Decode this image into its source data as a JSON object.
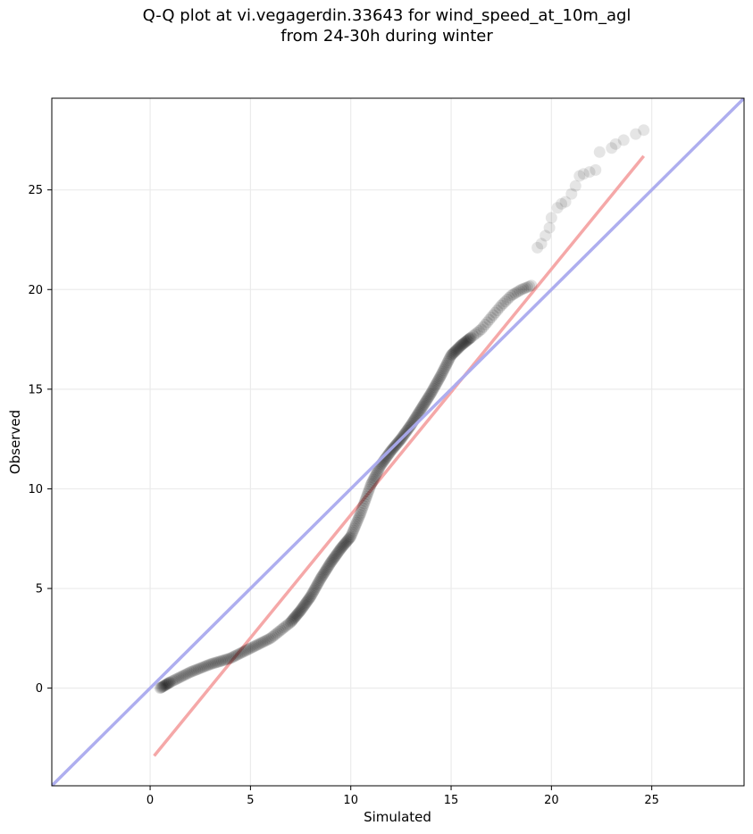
{
  "title": {
    "line1": "Q-Q plot at vi.vegagerdin.33643 for wind_speed_at_10m_agl",
    "line2": "from 24-30h during winter"
  },
  "chart_data": {
    "type": "scatter",
    "title": "Q-Q plot at vi.vegagerdin.33643 for wind_speed_at_10m_agl from 24-30h during winter",
    "xlabel": "Simulated",
    "ylabel": "Observed",
    "xlim": [
      -4.9,
      29.6
    ],
    "ylim": [
      -4.9,
      29.6
    ],
    "xticks": [
      0,
      5,
      10,
      15,
      20,
      25
    ],
    "yticks": [
      0,
      5,
      10,
      15,
      20,
      25
    ],
    "grid": true,
    "point_color": "#000000",
    "identity_line": {
      "from": [
        -4.9,
        -4.9
      ],
      "to": [
        29.6,
        29.6
      ],
      "color": "#aaaaee"
    },
    "fit_line": {
      "from": [
        0.2,
        -3.4
      ],
      "to": [
        24.6,
        26.7
      ],
      "color": "#f5a8a8"
    },
    "quantile_knots": {
      "x": [
        0.5,
        1.0,
        2.0,
        3.0,
        4.0,
        5.0,
        6.0,
        7.0,
        7.5,
        8.0,
        8.5,
        9.0,
        9.5,
        10.0,
        10.5,
        11.0,
        11.5,
        12.0,
        12.5,
        13.0,
        13.5,
        14.0,
        14.5,
        15.0,
        15.5,
        16.0,
        16.5,
        17.0,
        17.5,
        18.0,
        18.5,
        19.0
      ],
      "y": [
        0.0,
        0.3,
        0.8,
        1.2,
        1.5,
        2.0,
        2.5,
        3.3,
        3.9,
        4.6,
        5.5,
        6.3,
        7.0,
        7.6,
        8.8,
        10.2,
        11.2,
        11.9,
        12.5,
        13.2,
        14.0,
        14.8,
        15.7,
        16.7,
        17.2,
        17.6,
        18.0,
        18.6,
        19.2,
        19.7,
        20.0,
        20.2
      ]
    },
    "tail_points": {
      "x": [
        19.3,
        19.5,
        19.7,
        19.9,
        20.0,
        20.3,
        20.5,
        20.7,
        21.0,
        21.2,
        21.4,
        21.6,
        21.9,
        22.2,
        22.4,
        23.0,
        23.2,
        23.6,
        24.2,
        24.6
      ],
      "y": [
        22.1,
        22.3,
        22.7,
        23.1,
        23.6,
        24.1,
        24.3,
        24.4,
        24.8,
        25.2,
        25.7,
        25.8,
        25.9,
        26.0,
        26.9,
        27.1,
        27.3,
        27.5,
        27.8,
        28.0
      ]
    }
  }
}
